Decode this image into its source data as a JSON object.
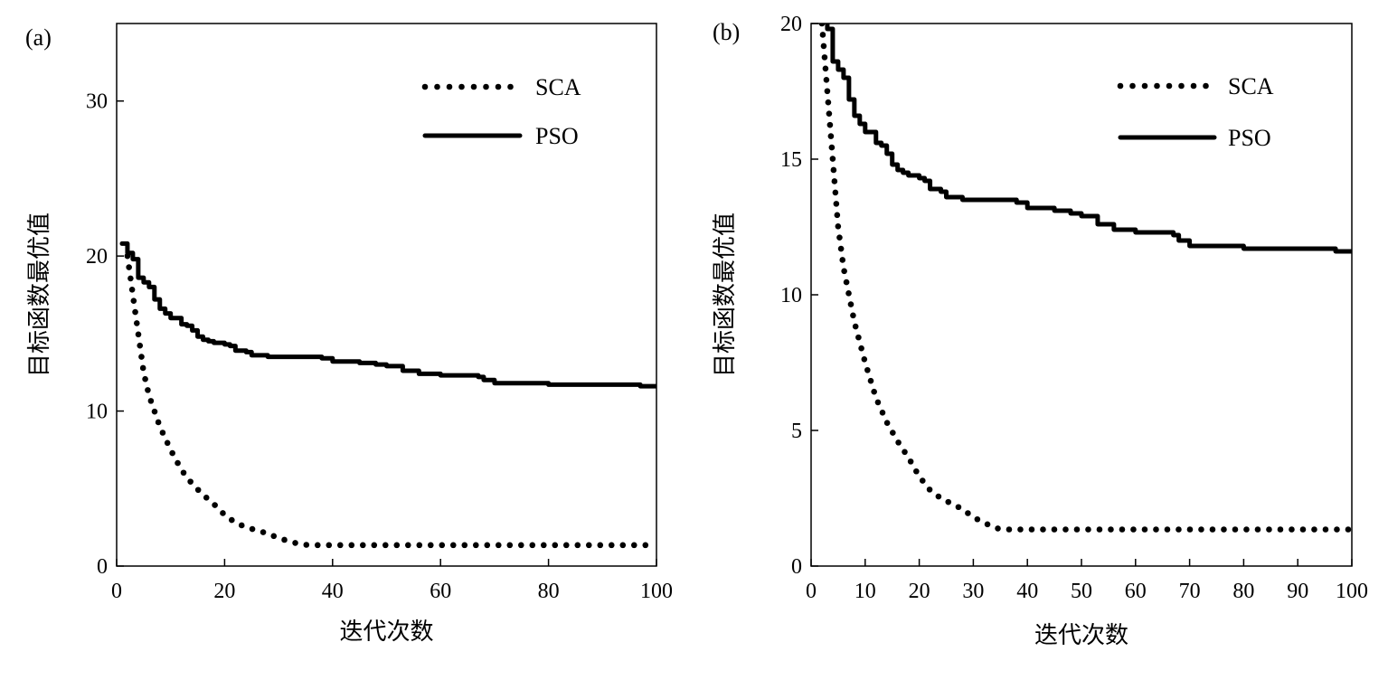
{
  "chart_data": [
    {
      "type": "line",
      "panel_label": "(a)",
      "xlabel": "迭代次数",
      "ylabel": "目标函数最优值",
      "xlim": [
        0,
        100
      ],
      "ylim": [
        0,
        35
      ],
      "xticks": [
        0,
        20,
        40,
        60,
        80,
        100
      ],
      "yticks": [
        0,
        10,
        20,
        30
      ],
      "grid": false,
      "legend_position": "top-right",
      "series": [
        {
          "name": "SCA",
          "style": "dotted",
          "color": "#000000",
          "x": [
            2,
            3,
            4,
            5,
            6,
            7,
            8,
            10,
            12,
            14,
            16,
            18,
            20,
            22,
            24,
            26,
            28,
            30,
            32,
            34,
            36,
            40,
            50,
            60,
            70,
            80,
            90,
            100
          ],
          "y": [
            20.0,
            17.5,
            15.0,
            12.5,
            11.0,
            10.0,
            9.0,
            7.5,
            6.2,
            5.3,
            4.6,
            4.0,
            3.3,
            2.8,
            2.5,
            2.3,
            2.1,
            1.8,
            1.6,
            1.4,
            1.35,
            1.35,
            1.35,
            1.35,
            1.35,
            1.35,
            1.35,
            1.35
          ]
        },
        {
          "name": "PSO",
          "style": "solid",
          "color": "#000000",
          "x": [
            1,
            2,
            3,
            4,
            5,
            6,
            7,
            8,
            9,
            10,
            11,
            12,
            13,
            14,
            15,
            16,
            17,
            18,
            19,
            20,
            21,
            22,
            24,
            25,
            26,
            28,
            30,
            35,
            38,
            40,
            43,
            45,
            48,
            50,
            53,
            56,
            58,
            60,
            65,
            67,
            68,
            70,
            75,
            80,
            85,
            90,
            95,
            97,
            100
          ],
          "y": [
            20.8,
            20.2,
            19.8,
            18.6,
            18.3,
            18.0,
            17.2,
            16.6,
            16.3,
            16.0,
            16.0,
            15.6,
            15.5,
            15.2,
            14.8,
            14.6,
            14.5,
            14.4,
            14.4,
            14.3,
            14.2,
            13.9,
            13.8,
            13.6,
            13.6,
            13.5,
            13.5,
            13.5,
            13.4,
            13.2,
            13.2,
            13.1,
            13.0,
            12.9,
            12.6,
            12.4,
            12.4,
            12.3,
            12.3,
            12.2,
            12.0,
            11.8,
            11.8,
            11.7,
            11.7,
            11.7,
            11.7,
            11.6,
            11.6
          ]
        }
      ]
    },
    {
      "type": "line",
      "panel_label": "(b)",
      "xlabel": "迭代次数",
      "ylabel": "目标函数最优值",
      "xlim": [
        0,
        100
      ],
      "ylim": [
        0,
        20
      ],
      "xticks": [
        0,
        10,
        20,
        30,
        40,
        50,
        60,
        70,
        80,
        90,
        100
      ],
      "yticks": [
        0,
        5,
        10,
        15,
        20
      ],
      "grid": false,
      "legend_position": "top-right",
      "series": [
        {
          "name": "SCA",
          "style": "dotted",
          "color": "#000000",
          "x": [
            2,
            3,
            4,
            5,
            6,
            7,
            8,
            10,
            12,
            14,
            16,
            18,
            20,
            22,
            24,
            26,
            28,
            30,
            32,
            34,
            36,
            40,
            50,
            60,
            70,
            80,
            90,
            100
          ],
          "y": [
            20.0,
            17.5,
            15.0,
            12.5,
            11.0,
            10.0,
            9.0,
            7.5,
            6.2,
            5.3,
            4.6,
            4.0,
            3.3,
            2.8,
            2.5,
            2.3,
            2.1,
            1.8,
            1.6,
            1.4,
            1.35,
            1.35,
            1.35,
            1.35,
            1.35,
            1.35,
            1.35,
            1.35
          ]
        },
        {
          "name": "PSO",
          "style": "solid",
          "color": "#000000",
          "x": [
            1,
            2,
            3,
            4,
            5,
            6,
            7,
            8,
            9,
            10,
            11,
            12,
            13,
            14,
            15,
            16,
            17,
            18,
            19,
            20,
            21,
            22,
            24,
            25,
            26,
            28,
            30,
            35,
            38,
            40,
            43,
            45,
            48,
            50,
            53,
            56,
            58,
            60,
            65,
            67,
            68,
            70,
            75,
            80,
            85,
            90,
            95,
            97,
            100
          ],
          "y": [
            20.8,
            20.2,
            19.8,
            18.6,
            18.3,
            18.0,
            17.2,
            16.6,
            16.3,
            16.0,
            16.0,
            15.6,
            15.5,
            15.2,
            14.8,
            14.6,
            14.5,
            14.4,
            14.4,
            14.3,
            14.2,
            13.9,
            13.8,
            13.6,
            13.6,
            13.5,
            13.5,
            13.5,
            13.4,
            13.2,
            13.2,
            13.1,
            13.0,
            12.9,
            12.6,
            12.4,
            12.4,
            12.3,
            12.3,
            12.2,
            12.0,
            11.8,
            11.8,
            11.7,
            11.7,
            11.7,
            11.7,
            11.6,
            11.6
          ]
        }
      ]
    }
  ]
}
